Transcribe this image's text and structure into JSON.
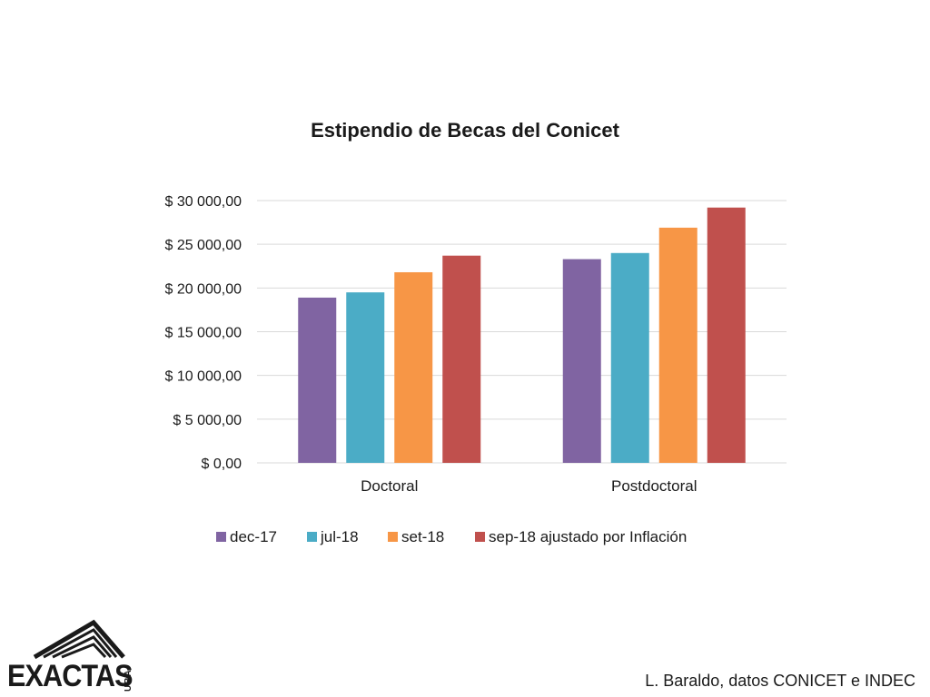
{
  "chart_data": {
    "type": "bar",
    "title": "Estipendio de Becas del Conicet",
    "categories": [
      "Doctoral",
      "Postdoctoral"
    ],
    "series": [
      {
        "name": "dec-17",
        "color": "#8064a2",
        "values": [
          18900,
          23300
        ]
      },
      {
        "name": "jul-18",
        "color": "#4bacc6",
        "values": [
          19500,
          24000
        ]
      },
      {
        "name": "set-18",
        "color": "#f79646",
        "values": [
          21800,
          26900
        ]
      },
      {
        "name": "sep-18 ajustado por Inflación",
        "color": "#c0504d",
        "values": [
          23700,
          29200
        ]
      }
    ],
    "ylim": [
      0,
      30000
    ],
    "y_ticks": [
      0,
      5000,
      10000,
      15000,
      20000,
      25000,
      30000
    ],
    "y_tick_labels": [
      "$ 0,00",
      "$ 5 000,00",
      "$ 10 000,00",
      "$ 15 000,00",
      "$ 20 000,00",
      "$ 25 000,00",
      "$ 30 000,00"
    ],
    "grid": true,
    "legend_position": "bottom"
  },
  "logo": {
    "name": "EXACTAS",
    "sub": "UBA"
  },
  "credit": "L. Baraldo, datos CONICET e INDEC"
}
